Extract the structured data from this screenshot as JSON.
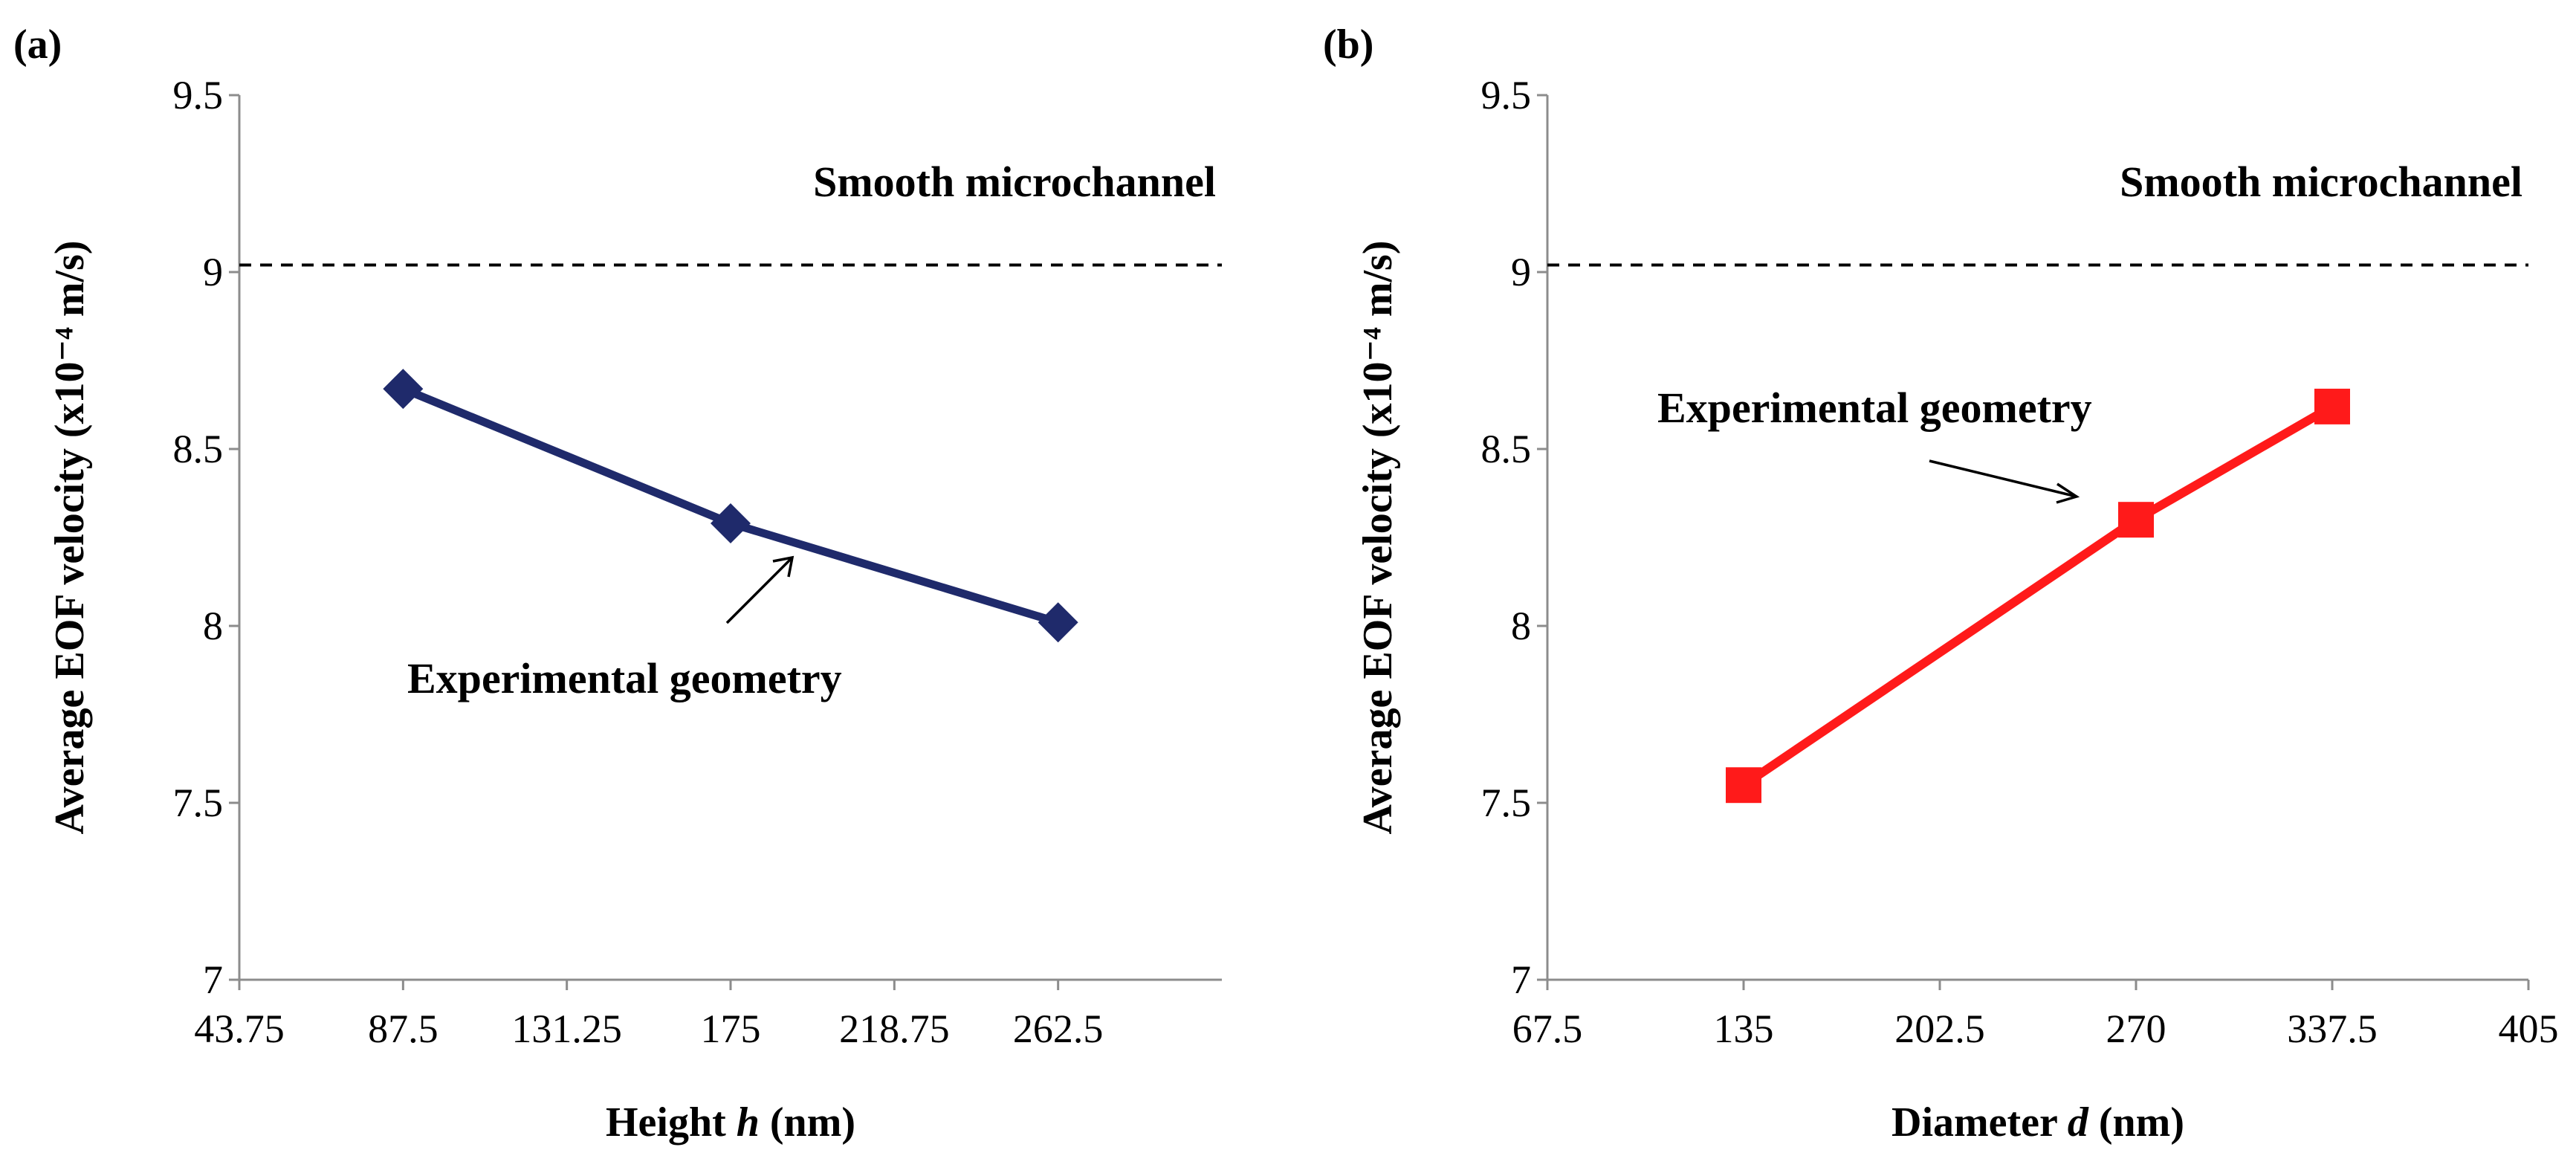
{
  "chart_data": [
    {
      "type": "line",
      "panel_label": "(a)",
      "title": "",
      "xlabel_prefix": "Height ",
      "xlabel_var": "h",
      "xlabel_suffix": " (nm)",
      "ylabel": "Average EOF velocity (x10⁻⁴ m/s)",
      "xlim": [
        43.75,
        306.25
      ],
      "ylim": [
        7,
        9.5
      ],
      "xticks": [
        43.75,
        87.5,
        131.25,
        175,
        218.75,
        262.5
      ],
      "xtick_labels": [
        "43.75",
        "87.5",
        "131.25",
        "175",
        "218.75",
        "262.5"
      ],
      "yticks": [
        7,
        7.5,
        8,
        8.5,
        9,
        9.5
      ],
      "ytick_labels": [
        "7",
        "7.5",
        "8",
        "8.5",
        "9",
        "9.5"
      ],
      "grid": false,
      "series": [
        {
          "name": "EOF velocity",
          "color": "#1f2a6b",
          "marker": "diamond",
          "x": [
            87.5,
            175,
            262.5
          ],
          "y": [
            8.67,
            8.29,
            8.01
          ]
        }
      ],
      "reference_line": {
        "y": 9.02,
        "label": "Smooth microchannel",
        "style": "dashed"
      },
      "annotation": {
        "text": "Experimental geometry",
        "points_to_x": 175,
        "points_to_y": 8.29
      }
    },
    {
      "type": "line",
      "panel_label": "(b)",
      "title": "",
      "xlabel_prefix": "Diameter ",
      "xlabel_var": "d",
      "xlabel_suffix": " (nm)",
      "ylabel": "Average EOF velocity (x10⁻⁴ m/s)",
      "xlim": [
        67.5,
        405
      ],
      "ylim": [
        7,
        9.5
      ],
      "xticks": [
        67.5,
        135,
        202.5,
        270,
        337.5,
        405
      ],
      "xtick_labels": [
        "67.5",
        "135",
        "202.5",
        "270",
        "337.5",
        "405"
      ],
      "yticks": [
        7,
        7.5,
        8,
        8.5,
        9,
        9.5
      ],
      "ytick_labels": [
        "7",
        "7.5",
        "8",
        "8.5",
        "9",
        "9.5"
      ],
      "grid": false,
      "series": [
        {
          "name": "EOF velocity",
          "color": "#ff1a1a",
          "marker": "square",
          "x": [
            135,
            270,
            337.5
          ],
          "y": [
            7.55,
            8.3,
            8.62
          ]
        }
      ],
      "reference_line": {
        "y": 9.02,
        "label": "Smooth microchannel",
        "style": "dashed"
      },
      "annotation": {
        "text": "Experimental geometry",
        "points_to_x": 270,
        "points_to_y": 8.3
      }
    }
  ]
}
